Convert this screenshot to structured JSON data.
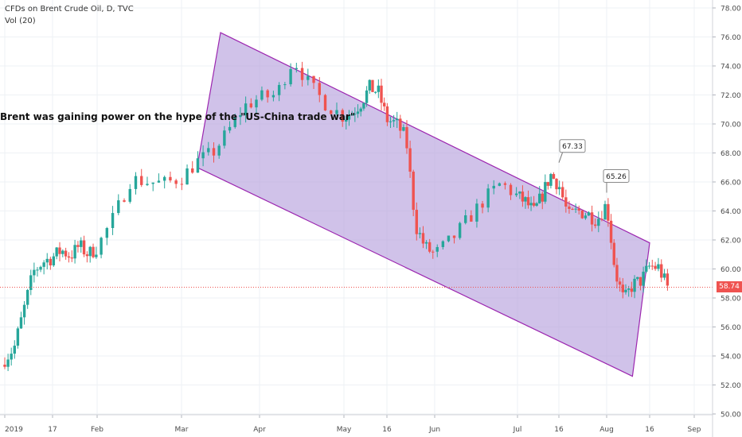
{
  "header": {
    "symbol_line": "CFDs on Brent Crude Oil, D, TVC",
    "volume_line": "Vol (20)"
  },
  "last_price": "58.74",
  "annotation": "Brent was gaining power on the hype of the \"US-China trade war\"",
  "callouts": [
    {
      "label": "67.33"
    },
    {
      "label": "65.26"
    }
  ],
  "colors": {
    "up": "#26a69a",
    "down": "#ef5350",
    "channel_fill": "#b39ddb",
    "channel_stroke": "#9c27b0",
    "price_line": "#ef5350"
  },
  "chart_data": {
    "type": "candlestick",
    "x_ticks": [
      "2019",
      "17",
      "Feb",
      "Mar",
      "Apr",
      "May",
      "16",
      "Jun",
      "Jul",
      "16",
      "Aug",
      "16",
      "Sep"
    ],
    "y_ticks": [
      "78.00",
      "76.00",
      "74.00",
      "72.00",
      "70.00",
      "68.00",
      "66.00",
      "64.00",
      "62.00",
      "60.00",
      "58.00",
      "56.00",
      "54.00",
      "52.00",
      "50.00"
    ],
    "ylim": [
      50,
      78
    ],
    "last_price": 58.74,
    "channel": {
      "shape": "descending-parallelogram",
      "upper": [
        [
          3.5,
          76.3
        ],
        [
          11.0,
          61.8
        ]
      ],
      "lower": [
        [
          3.2,
          67.0
        ],
        [
          10.6,
          52.6
        ]
      ]
    },
    "series_close": [
      [
        0.0,
        53.8
      ],
      [
        0.2,
        54.6
      ],
      [
        0.4,
        57.2
      ],
      [
        0.6,
        59.8
      ],
      [
        0.8,
        60.5
      ],
      [
        1.0,
        60.8
      ],
      [
        1.2,
        61.3
      ],
      [
        1.4,
        60.9
      ],
      [
        1.6,
        61.6
      ],
      [
        1.8,
        61.0
      ],
      [
        2.0,
        61.5
      ],
      [
        2.2,
        63.6
      ],
      [
        2.4,
        66.2
      ],
      [
        2.6,
        66.0
      ],
      [
        2.8,
        65.9
      ],
      [
        3.0,
        66.3
      ],
      [
        3.2,
        67.4
      ],
      [
        3.4,
        68.0
      ],
      [
        3.6,
        69.5
      ],
      [
        3.8,
        71.2
      ],
      [
        4.0,
        71.8
      ],
      [
        4.2,
        72.0
      ],
      [
        4.4,
        74.5
      ],
      [
        4.6,
        72.6
      ],
      [
        4.8,
        71.3
      ],
      [
        5.0,
        70.5
      ],
      [
        5.2,
        70.8
      ],
      [
        5.4,
        71.5
      ],
      [
        5.6,
        72.5
      ],
      [
        5.8,
        72.2
      ],
      [
        6.0,
        70.3
      ],
      [
        6.2,
        70.0
      ],
      [
        6.4,
        69.0
      ],
      [
        6.6,
        63.0
      ],
      [
        6.8,
        61.5
      ],
      [
        7.0,
        61.0
      ],
      [
        7.2,
        62.0
      ],
      [
        7.4,
        63.4
      ],
      [
        7.6,
        64.8
      ],
      [
        7.8,
        65.9
      ],
      [
        8.0,
        65.0
      ],
      [
        8.2,
        64.6
      ],
      [
        8.4,
        63.9
      ],
      [
        8.6,
        65.1
      ],
      [
        8.8,
        66.5
      ],
      [
        9.0,
        65.8
      ],
      [
        9.2,
        63.6
      ],
      [
        9.4,
        64.0
      ],
      [
        9.6,
        63.8
      ],
      [
        9.8,
        63.4
      ],
      [
        10.0,
        64.5
      ],
      [
        10.2,
        59.8
      ],
      [
        10.4,
        57.8
      ],
      [
        10.6,
        58.9
      ],
      [
        10.8,
        59.2
      ],
      [
        11.0,
        60.2
      ],
      [
        11.2,
        60.1
      ],
      [
        11.4,
        58.74
      ]
    ]
  }
}
